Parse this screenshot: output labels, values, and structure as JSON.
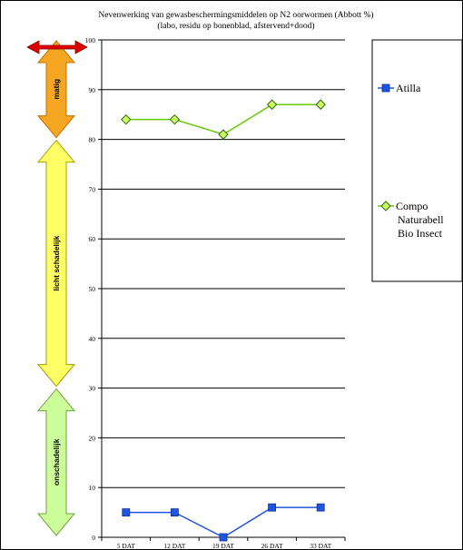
{
  "chart_data": {
    "type": "line",
    "title": "Nevenwerking van gewasbeschermingsmiddelen op N2 oorwormen (Abbott %)",
    "subtitle": "(labo, residu op bonenblad, afstervend+dood)",
    "xlabel": "",
    "ylabel": "",
    "categories": [
      "5 DAT",
      "12 DAT",
      "19 DAT",
      "26 DAT",
      "33 DAT"
    ],
    "ylim": [
      0,
      100
    ],
    "yticks": [
      0,
      10,
      20,
      30,
      40,
      50,
      60,
      70,
      80,
      90,
      100
    ],
    "grid": true,
    "legend_position": "right",
    "series": [
      {
        "name": "Atilla",
        "values": [
          5,
          5,
          0,
          6,
          6
        ],
        "color": "#2255dd",
        "marker": "square"
      },
      {
        "name": "Compo Naturabell Bio Insect",
        "legend_lines": [
          "Compo",
          "Naturabell",
          "Bio Insect"
        ],
        "values": [
          84,
          84,
          81,
          87,
          87
        ],
        "color": "#66cc00",
        "marker": "diamond",
        "marker_fill": "#ccff66"
      }
    ],
    "bands": [
      {
        "label": "matig",
        "from": 80,
        "to": 100,
        "fill": "#f5a623",
        "stroke": "#c07000"
      },
      {
        "label": "licht schadelijk",
        "from": 30,
        "to": 80,
        "fill": "#ffff66",
        "stroke": "#a0a000"
      },
      {
        "label": "onschadelijk",
        "from": 0,
        "to": 30,
        "fill": "#ccff99",
        "stroke": "#70a040"
      }
    ],
    "top_marker_color": "#e00000"
  }
}
